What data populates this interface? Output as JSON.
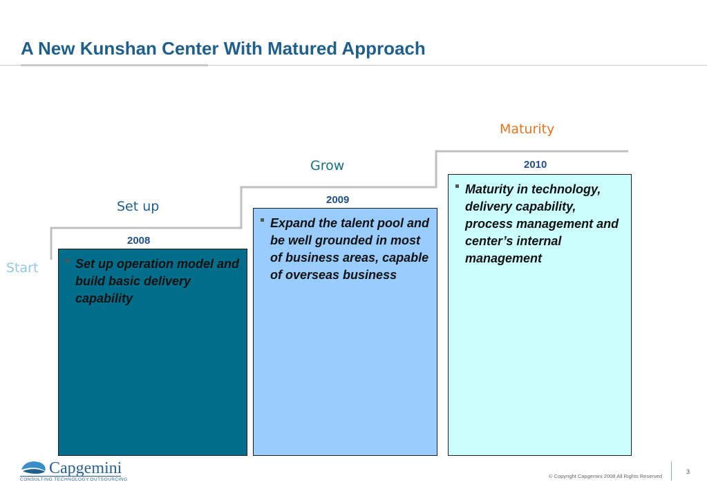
{
  "slide": {
    "title": "A New Kunshan Center With Matured Approach",
    "page_number": "3",
    "copyright": "© Copyright Capgemini 2008 All Rights Reserved"
  },
  "start_label": "Start",
  "stages": [
    {
      "name": "Set up",
      "year": "2008",
      "text": "Set up operation model and build basic delivery capability",
      "label_color": "#1f5f8c",
      "box_color": "#006e8a"
    },
    {
      "name": "Grow",
      "year": "2009",
      "text": "Expand the talent pool and be well grounded in most of business areas, capable of overseas business",
      "label_color": "#1a6e80",
      "box_color": "#99ccff"
    },
    {
      "name": "Maturity",
      "year": "2010",
      "text": "Maturity in technology, delivery capability, process management and center’s internal management",
      "label_color": "#e6731e",
      "box_color": "#ccffff"
    }
  ],
  "logo": {
    "word": "Capgemini",
    "tagline": "CONSULTING.TECHNOLOGY.OUTSOURCING",
    "icon": "capgemini-spade-logo-icon"
  },
  "colors": {
    "title": "#1f5f8c",
    "start": "#8ec9e0",
    "stair_line": "#bfbfbf"
  }
}
